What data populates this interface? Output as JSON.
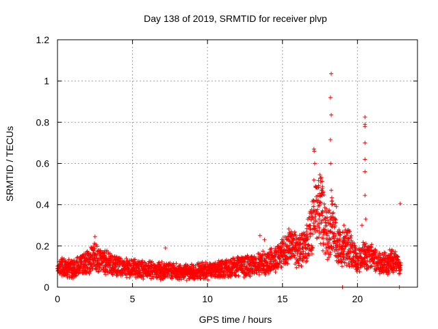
{
  "chart_data": {
    "type": "scatter",
    "title": "Day 138 of 2019, SRMTID for receiver plvp",
    "xlabel": "GPS time / hours",
    "ylabel": "SRMTID / TECUs",
    "xlim": [
      0,
      24
    ],
    "ylim": [
      0,
      1.2
    ],
    "x_ticks": [
      0,
      5,
      10,
      15,
      20
    ],
    "x_tick_labels": [
      "0",
      "5",
      "10",
      "15",
      "20"
    ],
    "y_ticks": [
      0,
      0.2,
      0.4,
      0.6,
      0.8,
      1.0,
      1.2
    ],
    "y_tick_labels": [
      "0",
      "0.2",
      "0.4",
      "0.6",
      "0.8",
      "1",
      "1.2"
    ],
    "grid": true,
    "marker": "plus",
    "color": "#ff0000",
    "baseline_profile": [
      [
        0.0,
        0.09
      ],
      [
        0.5,
        0.1
      ],
      [
        1.0,
        0.085
      ],
      [
        1.5,
        0.11
      ],
      [
        2.0,
        0.12
      ],
      [
        2.5,
        0.15
      ],
      [
        3.0,
        0.13
      ],
      [
        3.5,
        0.11
      ],
      [
        4.0,
        0.1
      ],
      [
        5.0,
        0.09
      ],
      [
        6.0,
        0.085
      ],
      [
        7.0,
        0.08
      ],
      [
        8.0,
        0.075
      ],
      [
        9.0,
        0.075
      ],
      [
        10.0,
        0.08
      ],
      [
        11.0,
        0.09
      ],
      [
        12.0,
        0.1
      ],
      [
        13.0,
        0.105
      ],
      [
        14.0,
        0.12
      ],
      [
        14.5,
        0.14
      ],
      [
        15.0,
        0.16
      ],
      [
        15.5,
        0.2
      ],
      [
        16.0,
        0.17
      ],
      [
        16.5,
        0.19
      ],
      [
        17.0,
        0.3
      ],
      [
        17.5,
        0.4
      ],
      [
        18.0,
        0.25
      ],
      [
        18.3,
        0.3
      ],
      [
        18.6,
        0.22
      ],
      [
        19.0,
        0.18
      ],
      [
        19.5,
        0.2
      ],
      [
        20.0,
        0.12
      ],
      [
        20.5,
        0.16
      ],
      [
        21.0,
        0.14
      ],
      [
        21.5,
        0.12
      ],
      [
        22.0,
        0.12
      ],
      [
        22.5,
        0.13
      ],
      [
        22.9,
        0.1
      ]
    ],
    "outliers": [
      [
        18.25,
        1.035
      ],
      [
        18.2,
        0.92
      ],
      [
        18.25,
        0.835
      ],
      [
        18.2,
        0.715
      ],
      [
        18.22,
        0.6
      ],
      [
        18.25,
        0.47
      ],
      [
        20.5,
        0.825
      ],
      [
        20.5,
        0.79
      ],
      [
        20.5,
        0.78
      ],
      [
        20.5,
        0.7
      ],
      [
        20.5,
        0.62
      ],
      [
        20.5,
        0.56
      ],
      [
        20.5,
        0.445
      ],
      [
        20.55,
        0.33
      ],
      [
        22.85,
        0.405
      ],
      [
        17.1,
        0.67
      ],
      [
        17.12,
        0.66
      ],
      [
        17.15,
        0.6
      ],
      [
        17.1,
        0.52
      ],
      [
        17.2,
        0.49
      ],
      [
        17.6,
        0.47
      ],
      [
        17.7,
        0.46
      ],
      [
        17.5,
        0.44
      ],
      [
        13.5,
        0.25
      ],
      [
        13.8,
        0.23
      ],
      [
        7.2,
        0.19
      ],
      [
        2.5,
        0.245
      ],
      [
        18.5,
        0.4
      ],
      [
        18.6,
        0.39
      ],
      [
        17.3,
        0.42
      ],
      [
        19.1,
        0.3
      ],
      [
        19.3,
        0.27
      ],
      [
        20.3,
        0.3
      ],
      [
        22.8,
        0.0
      ],
      [
        19.0,
        0.0
      ]
    ]
  }
}
